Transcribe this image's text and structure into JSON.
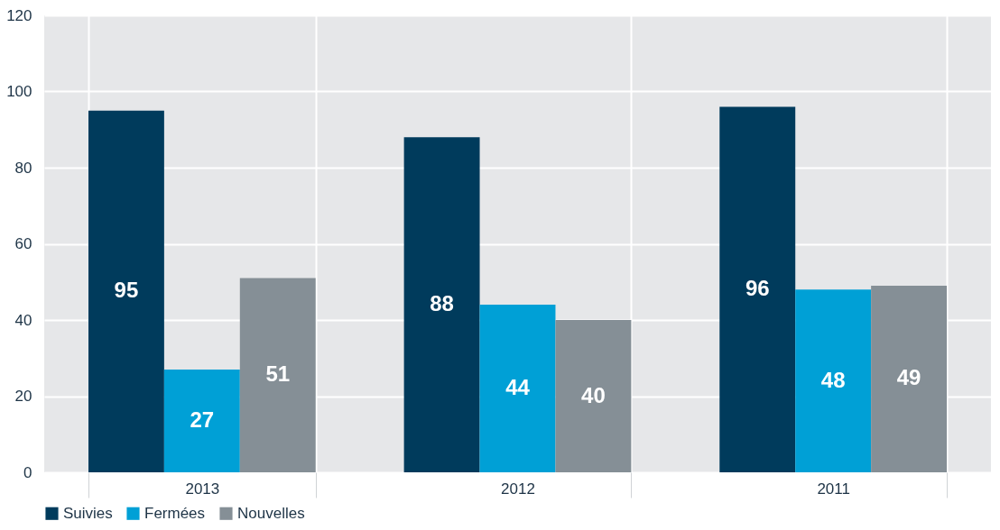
{
  "chart_data": {
    "type": "bar",
    "categories": [
      "2013",
      "2012",
      "2011"
    ],
    "series": [
      {
        "name": "Suivies",
        "color": "#003b5c",
        "values": [
          95,
          88,
          96
        ]
      },
      {
        "name": "Fermées",
        "color": "#00a0d6",
        "values": [
          27,
          44,
          48
        ]
      },
      {
        "name": "Nouvelles",
        "color": "#858f96",
        "values": [
          51,
          40,
          49
        ]
      }
    ],
    "ylim": [
      0,
      120
    ],
    "yticks": [
      0,
      20,
      40,
      60,
      80,
      100,
      120
    ],
    "grid": true,
    "legend": "bottom",
    "data_labels": true
  }
}
